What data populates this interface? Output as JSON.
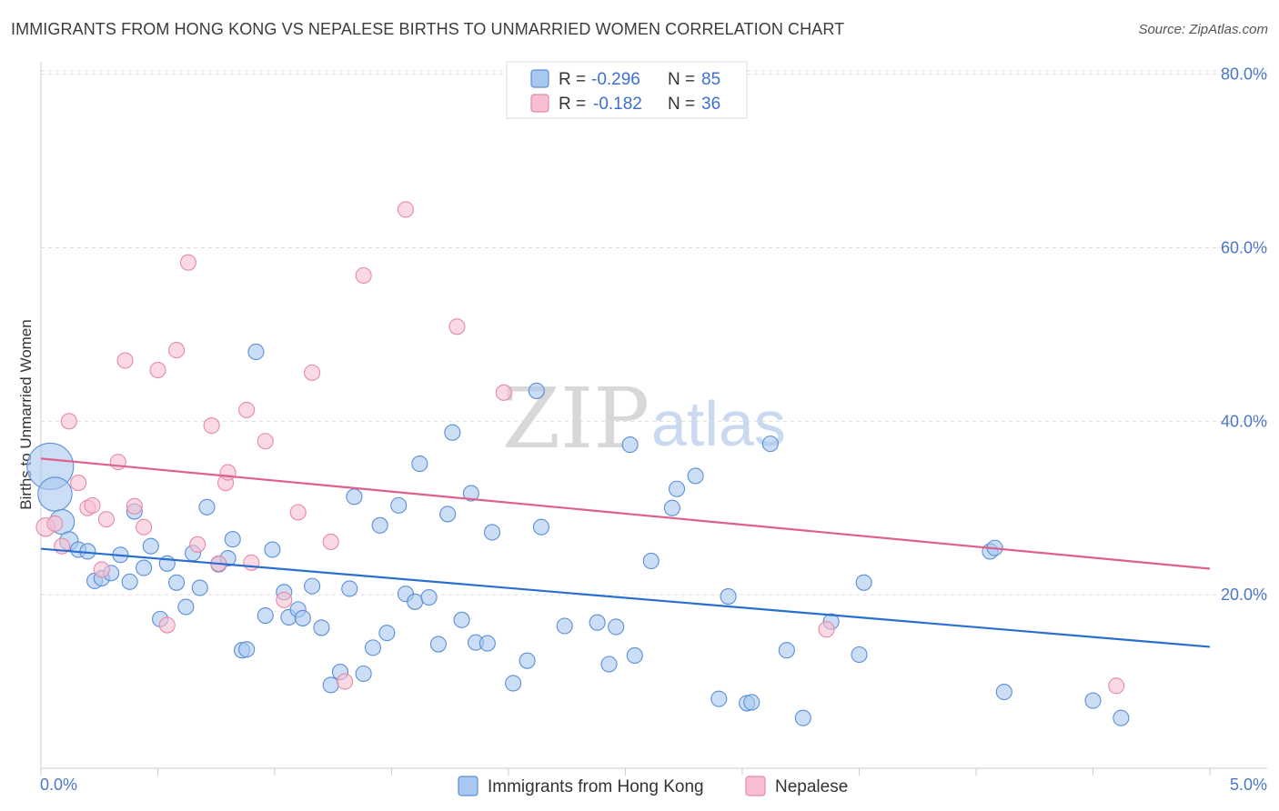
{
  "header": {
    "title": "IMMIGRANTS FROM HONG KONG VS NEPALESE BIRTHS TO UNMARRIED WOMEN CORRELATION CHART",
    "source": "Source: ZipAtlas.com"
  },
  "watermark": {
    "part1": "ZIP",
    "part2": "atlas"
  },
  "legend": {
    "rows": [
      {
        "r_label": "R =",
        "r_value": "-0.296",
        "n_label": "N =",
        "n_value": "85"
      },
      {
        "r_label": "R =",
        "r_value": "-0.182",
        "n_label": "N =",
        "n_value": "36"
      }
    ]
  },
  "bottom_legend": [
    "Immigrants from Hong Kong",
    "Nepalese"
  ],
  "colors": {
    "blue_fill": "#a9c8ef",
    "blue_stroke": "#5b8fd6",
    "blue_line": "#2a6fd0",
    "pink_fill": "#f7bfd0",
    "pink_stroke": "#e68aa8",
    "pink_line": "#e0608c",
    "tick_text": "#4a78c8",
    "grid": "#dddddd"
  },
  "chart_data": {
    "type": "scatter",
    "title": "IMMIGRANTS FROM HONG KONG VS NEPALESE BIRTHS TO UNMARRIED WOMEN CORRELATION CHART",
    "xlabel": "",
    "ylabel": "Births to Unmarried Women",
    "xlim": [
      0,
      5
    ],
    "ylim": [
      0,
      83
    ],
    "x_tick_labels": [
      "0.0%",
      "5.0%"
    ],
    "y_ticks": [
      20,
      40,
      60,
      80
    ],
    "y_tick_labels": [
      "20.0%",
      "40.0%",
      "60.0%",
      "80.0%"
    ],
    "grid": true,
    "legend_position": "top-center",
    "series": [
      {
        "name": "Immigrants from Hong Kong",
        "r": -0.296,
        "n": 85,
        "trend": {
          "x": [
            0,
            5
          ],
          "y": [
            25.3,
            14.0
          ]
        },
        "points": [
          [
            0.04,
            34.8,
            3
          ],
          [
            0.06,
            31.6,
            2.2
          ],
          [
            0.09,
            28.4,
            1.6
          ],
          [
            0.12,
            26.2,
            1.2
          ],
          [
            0.16,
            25.2,
            1
          ],
          [
            0.2,
            25.0,
            1
          ],
          [
            0.23,
            21.6,
            1
          ],
          [
            0.26,
            21.9,
            1
          ],
          [
            0.3,
            22.5,
            1
          ],
          [
            0.34,
            24.6,
            1
          ],
          [
            0.38,
            21.5,
            1
          ],
          [
            0.4,
            29.6,
            1
          ],
          [
            0.44,
            23.1,
            1
          ],
          [
            0.47,
            25.6,
            1
          ],
          [
            0.51,
            17.2,
            1
          ],
          [
            0.54,
            23.6,
            1
          ],
          [
            0.58,
            21.4,
            1
          ],
          [
            0.62,
            18.6,
            1
          ],
          [
            0.65,
            24.8,
            1
          ],
          [
            0.68,
            20.8,
            1
          ],
          [
            0.71,
            30.1,
            1
          ],
          [
            0.76,
            23.5,
            1
          ],
          [
            0.8,
            24.2,
            1
          ],
          [
            0.82,
            26.4,
            1
          ],
          [
            0.86,
            13.6,
            1
          ],
          [
            0.88,
            13.7,
            1
          ],
          [
            0.92,
            48.0,
            1
          ],
          [
            0.96,
            17.6,
            1
          ],
          [
            0.99,
            25.2,
            1
          ],
          [
            1.04,
            20.3,
            1
          ],
          [
            1.06,
            17.4,
            1
          ],
          [
            1.1,
            18.3,
            1
          ],
          [
            1.12,
            17.3,
            1
          ],
          [
            1.16,
            21.0,
            1
          ],
          [
            1.2,
            16.2,
            1
          ],
          [
            1.24,
            9.6,
            1
          ],
          [
            1.28,
            11.1,
            1
          ],
          [
            1.32,
            20.7,
            1
          ],
          [
            1.34,
            31.3,
            1
          ],
          [
            1.38,
            10.9,
            1
          ],
          [
            1.42,
            13.9,
            1
          ],
          [
            1.45,
            28.0,
            1
          ],
          [
            1.48,
            15.6,
            1
          ],
          [
            1.53,
            30.3,
            1
          ],
          [
            1.56,
            20.1,
            1
          ],
          [
            1.6,
            19.2,
            1
          ],
          [
            1.62,
            35.1,
            1
          ],
          [
            1.66,
            19.7,
            1
          ],
          [
            1.7,
            14.3,
            1
          ],
          [
            1.74,
            29.3,
            1
          ],
          [
            1.76,
            38.7,
            1
          ],
          [
            1.8,
            17.1,
            1
          ],
          [
            1.84,
            31.7,
            1
          ],
          [
            1.86,
            14.5,
            1
          ],
          [
            1.91,
            14.4,
            1
          ],
          [
            1.93,
            27.2,
            1
          ],
          [
            2.02,
            9.8,
            1
          ],
          [
            2.08,
            12.4,
            1
          ],
          [
            2.12,
            43.5,
            1
          ],
          [
            2.14,
            27.8,
            1
          ],
          [
            2.24,
            16.4,
            1
          ],
          [
            2.38,
            16.8,
            1
          ],
          [
            2.43,
            12.0,
            1
          ],
          [
            2.46,
            16.3,
            1
          ],
          [
            2.52,
            37.3,
            1
          ],
          [
            2.54,
            13.0,
            1
          ],
          [
            2.61,
            23.9,
            1
          ],
          [
            2.7,
            30.0,
            1
          ],
          [
            2.72,
            32.2,
            1
          ],
          [
            2.8,
            33.7,
            1
          ],
          [
            2.9,
            8.0,
            1
          ],
          [
            2.94,
            19.8,
            1
          ],
          [
            3.02,
            7.5,
            1
          ],
          [
            3.04,
            7.6,
            1
          ],
          [
            3.12,
            37.4,
            1
          ],
          [
            3.19,
            13.6,
            1
          ],
          [
            3.26,
            5.8,
            1
          ],
          [
            3.38,
            16.9,
            1
          ],
          [
            3.5,
            13.1,
            1
          ],
          [
            3.52,
            21.4,
            1
          ],
          [
            4.06,
            25.0,
            1
          ],
          [
            4.08,
            25.4,
            1
          ],
          [
            4.12,
            8.8,
            1
          ],
          [
            4.5,
            7.8,
            1
          ],
          [
            4.62,
            5.8,
            1
          ]
        ]
      },
      {
        "name": "Nepalese",
        "r": -0.182,
        "n": 36,
        "trend": {
          "x": [
            0,
            5
          ],
          "y": [
            35.7,
            23.0
          ]
        },
        "points": [
          [
            0.02,
            27.8,
            1.2
          ],
          [
            0.06,
            28.2,
            1
          ],
          [
            0.09,
            25.6,
            1
          ],
          [
            0.12,
            40.0,
            1
          ],
          [
            0.16,
            32.9,
            1
          ],
          [
            0.2,
            30.0,
            1
          ],
          [
            0.22,
            30.3,
            1
          ],
          [
            0.26,
            22.9,
            1
          ],
          [
            0.28,
            28.7,
            1
          ],
          [
            0.33,
            35.3,
            1
          ],
          [
            0.36,
            47.0,
            1
          ],
          [
            0.4,
            30.2,
            1
          ],
          [
            0.44,
            27.8,
            1
          ],
          [
            0.5,
            45.9,
            1
          ],
          [
            0.54,
            16.5,
            1
          ],
          [
            0.58,
            48.2,
            1
          ],
          [
            0.63,
            58.3,
            1
          ],
          [
            0.67,
            25.8,
            1
          ],
          [
            0.73,
            39.5,
            1
          ],
          [
            0.76,
            23.6,
            1
          ],
          [
            0.79,
            32.9,
            1
          ],
          [
            0.8,
            34.1,
            1
          ],
          [
            0.88,
            41.3,
            1
          ],
          [
            0.9,
            23.7,
            1
          ],
          [
            0.96,
            37.7,
            1
          ],
          [
            1.04,
            19.4,
            1
          ],
          [
            1.1,
            29.5,
            1
          ],
          [
            1.16,
            45.6,
            1
          ],
          [
            1.24,
            26.1,
            1
          ],
          [
            1.3,
            10.0,
            1
          ],
          [
            1.38,
            56.8,
            1
          ],
          [
            1.56,
            64.4,
            1
          ],
          [
            1.78,
            50.9,
            1
          ],
          [
            1.98,
            43.3,
            1
          ],
          [
            3.36,
            16.0,
            1
          ],
          [
            4.6,
            9.5,
            1
          ]
        ]
      }
    ]
  }
}
